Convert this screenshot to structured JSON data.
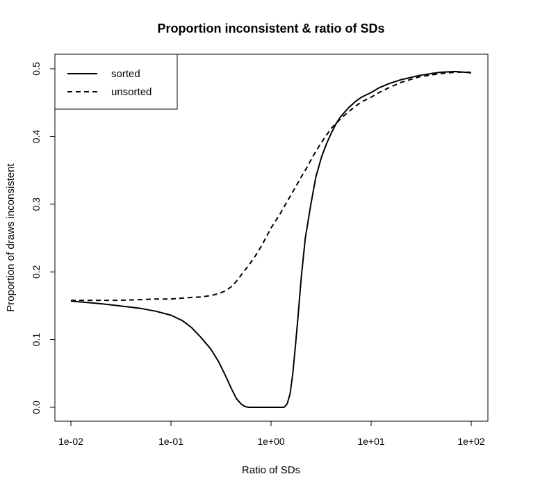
{
  "chart_data": {
    "type": "line",
    "title": "Proportion inconsistent & ratio of SDs",
    "xlabel": "Ratio of SDs",
    "ylabel": "Proportion of draws inconsistent",
    "x_scale": "log",
    "xlim": [
      0.01,
      100
    ],
    "ylim": [
      0,
      0.5
    ],
    "x_ticks": [
      0.01,
      0.1,
      1,
      10,
      100
    ],
    "x_tick_labels": [
      "1e-02",
      "1e-01",
      "1e+00",
      "1e+01",
      "1e+02"
    ],
    "y_ticks": [
      0,
      0.1,
      0.2,
      0.3,
      0.4,
      0.5
    ],
    "y_tick_labels": [
      "0.0",
      "0.1",
      "0.2",
      "0.3",
      "0.4",
      "0.5"
    ],
    "grid": false,
    "legend_position": "top-left",
    "series": [
      {
        "name": "sorted",
        "line_style": "solid",
        "x": [
          0.01,
          0.02,
          0.03,
          0.05,
          0.07,
          0.1,
          0.13,
          0.16,
          0.2,
          0.25,
          0.3,
          0.35,
          0.4,
          0.45,
          0.5,
          0.55,
          0.6,
          0.7,
          0.8,
          1.0,
          1.2,
          1.35,
          1.45,
          1.55,
          1.65,
          1.75,
          1.85,
          2.0,
          2.2,
          2.5,
          2.8,
          3.2,
          3.6,
          4.0,
          4.5,
          5.0,
          6.0,
          7.0,
          8.0,
          10.0,
          12.0,
          15.0,
          20.0,
          30.0,
          40.0,
          50.0,
          70.0,
          100.0
        ],
        "y": [
          0.157,
          0.153,
          0.15,
          0.146,
          0.142,
          0.136,
          0.128,
          0.118,
          0.103,
          0.086,
          0.067,
          0.047,
          0.028,
          0.013,
          0.005,
          0.001,
          0.0,
          0.0,
          0.0,
          0.0,
          0.0,
          0.0,
          0.005,
          0.02,
          0.05,
          0.09,
          0.13,
          0.19,
          0.25,
          0.3,
          0.34,
          0.37,
          0.39,
          0.405,
          0.42,
          0.43,
          0.443,
          0.452,
          0.458,
          0.465,
          0.472,
          0.478,
          0.484,
          0.49,
          0.493,
          0.495,
          0.496,
          0.494
        ]
      },
      {
        "name": "unsorted",
        "line_style": "dashed",
        "x": [
          0.01,
          0.02,
          0.03,
          0.05,
          0.07,
          0.1,
          0.15,
          0.2,
          0.25,
          0.3,
          0.35,
          0.4,
          0.45,
          0.5,
          0.6,
          0.7,
          0.8,
          0.9,
          1.0,
          1.2,
          1.4,
          1.6,
          1.8,
          2.0,
          2.3,
          2.6,
          3.0,
          3.5,
          4.0,
          5.0,
          6.0,
          7.0,
          8.0,
          10.0,
          12.0,
          15.0,
          20.0,
          30.0,
          40.0,
          50.0,
          70.0,
          100.0
        ],
        "y": [
          0.158,
          0.158,
          0.158,
          0.159,
          0.16,
          0.16,
          0.162,
          0.163,
          0.165,
          0.168,
          0.172,
          0.178,
          0.186,
          0.195,
          0.21,
          0.224,
          0.238,
          0.252,
          0.265,
          0.283,
          0.3,
          0.315,
          0.328,
          0.34,
          0.355,
          0.37,
          0.385,
          0.4,
          0.412,
          0.427,
          0.437,
          0.445,
          0.451,
          0.458,
          0.465,
          0.472,
          0.48,
          0.488,
          0.491,
          0.493,
          0.495,
          0.495
        ]
      }
    ]
  }
}
